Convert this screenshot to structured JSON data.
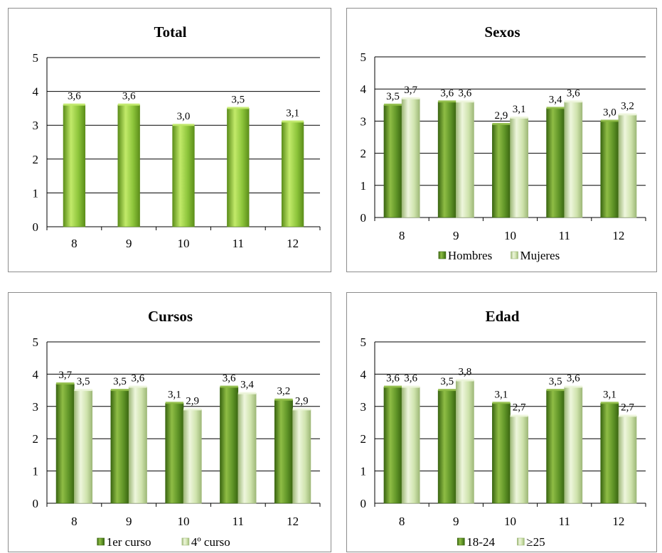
{
  "colors": {
    "series1": {
      "light": "#c2ea6a",
      "mid": "#8cc43a",
      "dark": "#5c8e1a"
    },
    "series1_dark": {
      "light": "#8fbd45",
      "mid": "#5f9427",
      "dark": "#3a6611"
    },
    "series2": {
      "light": "#eef6dd",
      "mid": "#cfe3ad",
      "dark": "#9eb878"
    },
    "gridline": "#000000",
    "border": "#8c8c8c"
  },
  "chart_data": [
    {
      "id": "total",
      "type": "bar",
      "title": "Total",
      "categories": [
        "8",
        "9",
        "10",
        "11",
        "12"
      ],
      "series": [
        {
          "values": [
            3.6,
            3.6,
            3.0,
            3.5,
            3.1
          ],
          "labels": [
            "3,6",
            "3,6",
            "3,0",
            "3,5",
            "3,1"
          ],
          "style": "series1"
        }
      ],
      "ylim": [
        0,
        5
      ],
      "yticks": [
        "0",
        "1",
        "2",
        "3",
        "4",
        "5"
      ],
      "grid": true,
      "legend": null
    },
    {
      "id": "sexos",
      "type": "bar",
      "title": "Sexos",
      "categories": [
        "8",
        "9",
        "10",
        "11",
        "12"
      ],
      "series": [
        {
          "name": "Hombres",
          "values": [
            3.5,
            3.6,
            2.9,
            3.4,
            3.0
          ],
          "labels": [
            "3,5",
            "3,6",
            "2,9",
            "3,4",
            "3,0"
          ],
          "style": "series1_dark"
        },
        {
          "name": "Mujeres",
          "values": [
            3.7,
            3.6,
            3.1,
            3.6,
            3.2
          ],
          "labels": [
            "3,7",
            "3,6",
            "3,1",
            "3,6",
            "3,2"
          ],
          "style": "series2"
        }
      ],
      "ylim": [
        0,
        5
      ],
      "yticks": [
        "0",
        "1",
        "2",
        "3",
        "4",
        "5"
      ],
      "grid": true,
      "legend": "bottom"
    },
    {
      "id": "cursos",
      "type": "bar",
      "title": "Cursos",
      "categories": [
        "8",
        "9",
        "10",
        "11",
        "12"
      ],
      "series": [
        {
          "name": "1er curso",
          "values": [
            3.7,
            3.5,
            3.1,
            3.6,
            3.2
          ],
          "labels": [
            "3,7",
            "3,5",
            "3,1",
            "3,6",
            "3,2"
          ],
          "style": "series1_dark"
        },
        {
          "name": "4º curso",
          "values": [
            3.5,
            3.6,
            2.9,
            3.4,
            2.9
          ],
          "labels": [
            "3,5",
            "3,6",
            "2,9",
            "3,4",
            "2,9"
          ],
          "style": "series2"
        }
      ],
      "ylim": [
        0,
        5
      ],
      "yticks": [
        "0",
        "1",
        "2",
        "3",
        "4",
        "5"
      ],
      "grid": true,
      "legend": "bottom"
    },
    {
      "id": "edad",
      "type": "bar",
      "title": "Edad",
      "categories": [
        "8",
        "9",
        "10",
        "11",
        "12"
      ],
      "series": [
        {
          "name": "18-24",
          "values": [
            3.6,
            3.5,
            3.1,
            3.5,
            3.1
          ],
          "labels": [
            "3,6",
            "3,5",
            "3,1",
            "3,5",
            "3,1"
          ],
          "style": "series1_dark"
        },
        {
          "name": "≥25",
          "values": [
            3.6,
            3.8,
            2.7,
            3.6,
            2.7
          ],
          "labels": [
            "3,6",
            "3,8",
            "2,7",
            "3,6",
            "2,7"
          ],
          "style": "series2"
        }
      ],
      "ylim": [
        0,
        5
      ],
      "yticks": [
        "0",
        "1",
        "2",
        "3",
        "4",
        "5"
      ],
      "grid": true,
      "legend": "bottom"
    }
  ]
}
